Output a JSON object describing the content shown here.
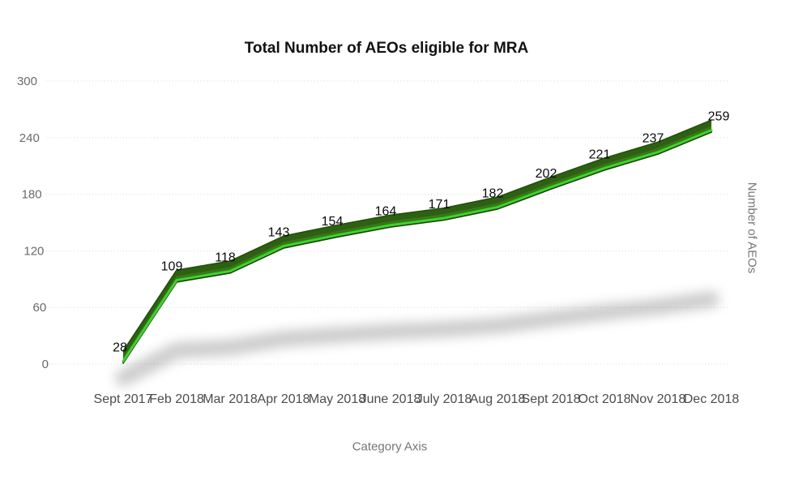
{
  "chart_data": {
    "type": "line",
    "style": "3d-ribbon-line-with-ground-shadow",
    "title": "Total Number of AEOs eligible for MRA",
    "xlabel": "Category Axis",
    "ylabel": "Number of AEOs",
    "categories": [
      "Sept 2017",
      "Feb 2018",
      "Mar 2018",
      "Apr 2018",
      "May 2018",
      "June 2018",
      "July 2018",
      "Aug 2018",
      "Sept 2018",
      "Oct 2018",
      "Nov 2018",
      "Dec 2018"
    ],
    "series": [
      {
        "name": "Total Number of AEOs eligible for MRA",
        "values": [
          28,
          109,
          118,
          143,
          154,
          164,
          171,
          182,
          202,
          221,
          237,
          259
        ]
      }
    ],
    "data_labels_visible": true,
    "y_ticks": [
      0,
      60,
      120,
      180,
      240,
      300
    ],
    "ylim": [
      0,
      300
    ],
    "grid": "horizontal-dotted",
    "legend": "none",
    "colors": {
      "background": "#ffffff",
      "line_bright": "#3ed231",
      "ribbon_dark": "#2e6013",
      "ribbon_mid": "#3a7c19",
      "ribbon_top_edge": "#224e0c",
      "ribbon_bottom_edge": "#174604",
      "shadow": "rgba(0,0,0,0.20)",
      "gridline": "#d7d7d7",
      "tick_text": "#6a6a6a",
      "category_text": "#4c4c4c",
      "axis_title_text": "#757575",
      "data_label_text": "#0a0a0a",
      "title_text": "#121212"
    }
  }
}
